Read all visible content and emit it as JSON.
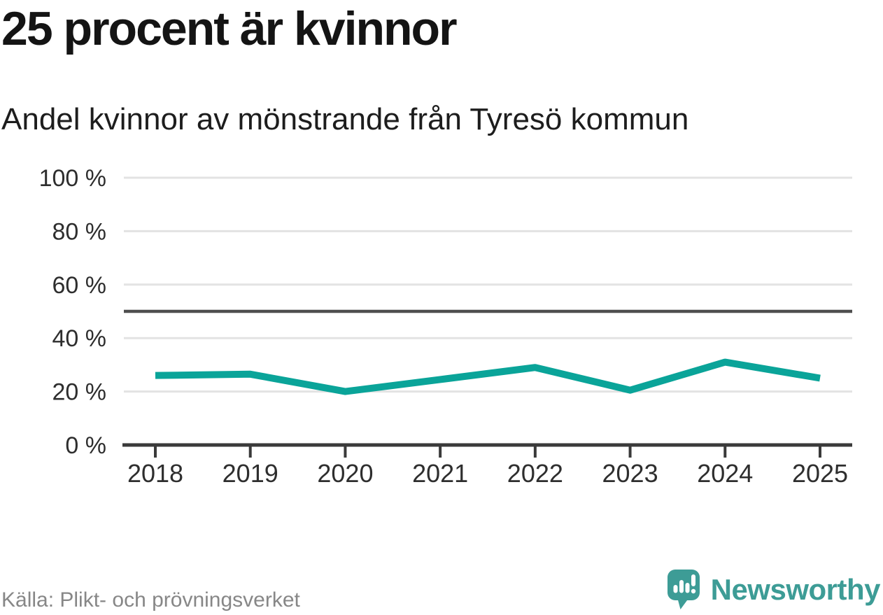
{
  "header": {
    "title": "25 procent är kvinnor",
    "subtitle": "Andel kvinnor av mönstrande från Tyresö kommun"
  },
  "chart_data": {
    "type": "line",
    "title": "25 procent är kvinnor",
    "subtitle": "Andel kvinnor av mönstrande från Tyresö kommun",
    "categories": [
      "2018",
      "2019",
      "2020",
      "2021",
      "2022",
      "2023",
      "2024",
      "2025"
    ],
    "series": [
      {
        "name": "Andel kvinnor av mönstrande",
        "values": [
          26,
          26.5,
          20,
          24.5,
          29,
          20.5,
          31,
          25
        ]
      }
    ],
    "unit": "%",
    "ylim": [
      0,
      100
    ],
    "yticks": [
      0,
      20,
      40,
      60,
      80,
      100
    ],
    "ytick_suffix": " %",
    "reference_line_value": 50,
    "grid": true,
    "legend_position": "none",
    "xlabel": "",
    "ylabel": ""
  },
  "footer": {
    "source": "Källa: Plikt- och prövningsverket",
    "brand": "Newsworthy"
  },
  "colors": {
    "line": "#0aa499",
    "grid": "#e3e3e3",
    "reference_line": "#4f4f4f",
    "axis": "#3a3a3a",
    "tick_text": "#2e2e2e",
    "title_text": "#141414",
    "source_text": "#878787",
    "brand_teal": "#3d9c96",
    "background": "#ffffff"
  }
}
